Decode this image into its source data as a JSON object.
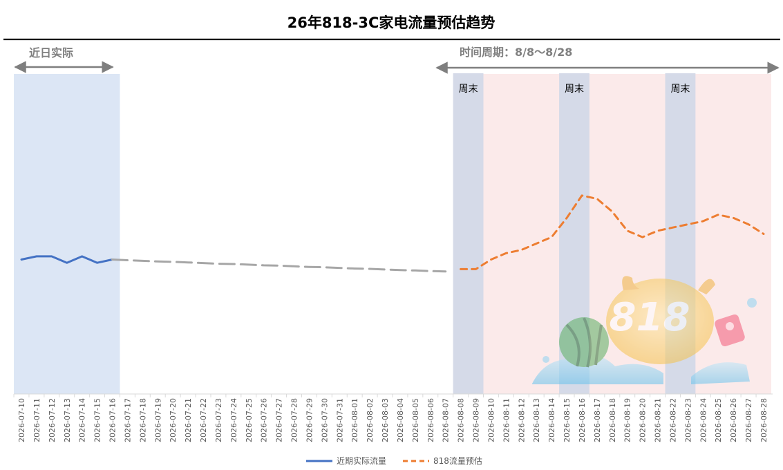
{
  "chart_data": {
    "type": "line",
    "title": "26年818-3C家电流量预估趋势",
    "categories": [
      "2026-07-10",
      "2026-07-11",
      "2026-07-12",
      "2026-07-13",
      "2026-07-14",
      "2026-07-15",
      "2026-07-16",
      "2026-07-17",
      "2026-07-18",
      "2026-07-19",
      "2026-07-20",
      "2026-07-21",
      "2026-07-22",
      "2026-07-23",
      "2026-07-24",
      "2026-07-25",
      "2026-07-26",
      "2026-07-27",
      "2026-07-28",
      "2026-07-29",
      "2026-07-30",
      "2026-07-31",
      "2026-08-01",
      "2026-08-02",
      "2026-08-03",
      "2026-08-04",
      "2026-08-05",
      "2026-08-06",
      "2026-08-07",
      "2026-08-08",
      "2026-08-09",
      "2026-08-10",
      "2026-08-11",
      "2026-08-12",
      "2026-08-13",
      "2026-08-14",
      "2026-08-15",
      "2026-08-16",
      "2026-08-17",
      "2026-08-18",
      "2026-08-19",
      "2026-08-20",
      "2026-08-21",
      "2026-08-22",
      "2026-08-23",
      "2026-08-24",
      "2026-08-25",
      "2026-08-26",
      "2026-08-27",
      "2026-08-28"
    ],
    "series": [
      {
        "name": "近期实际流量",
        "color": "#4472C4",
        "style": "solid",
        "values": [
          0.42,
          0.43,
          0.43,
          0.41,
          0.43,
          0.41,
          0.42,
          null,
          null,
          null,
          null,
          null,
          null,
          null,
          null,
          null,
          null,
          null,
          null,
          null,
          null,
          null,
          null,
          null,
          null,
          null,
          null,
          null,
          null,
          null,
          null,
          null,
          null,
          null,
          null,
          null,
          null,
          null,
          null,
          null,
          null,
          null,
          null,
          null,
          null,
          null,
          null,
          null,
          null,
          null
        ]
      },
      {
        "name": "818流量预估",
        "color": "#ED7D31",
        "style": "dashed",
        "values": [
          null,
          null,
          null,
          null,
          null,
          null,
          null,
          null,
          null,
          null,
          null,
          null,
          null,
          null,
          null,
          null,
          null,
          null,
          null,
          null,
          null,
          null,
          null,
          null,
          null,
          null,
          null,
          null,
          null,
          0.39,
          0.39,
          0.42,
          0.44,
          0.45,
          0.47,
          0.49,
          0.55,
          0.62,
          0.61,
          0.57,
          0.51,
          0.49,
          0.51,
          0.52,
          0.53,
          0.54,
          0.56,
          0.55,
          0.53,
          0.5
        ]
      },
      {
        "name": "",
        "color": "#A6A6A6",
        "style": "dashed",
        "values": [
          null,
          null,
          null,
          null,
          null,
          null,
          0.42,
          0.418,
          0.416,
          0.414,
          0.413,
          0.411,
          0.409,
          0.407,
          0.406,
          0.404,
          0.402,
          0.401,
          0.399,
          0.397,
          0.396,
          0.394,
          0.392,
          0.391,
          0.389,
          0.387,
          0.386,
          0.384,
          0.383,
          null,
          null,
          null,
          null,
          null,
          null,
          null,
          null,
          null,
          null,
          null,
          null,
          null,
          null,
          null,
          null,
          null,
          null,
          null,
          null,
          null
        ]
      }
    ],
    "ylim": [
      0,
      1
    ],
    "yaxis_visible": false,
    "grid": false,
    "legend": "bottom-center",
    "annotations": {
      "recent_label": "近日实际",
      "period_label": "时间周期：8/8～8/28",
      "weekend_label": "周末"
    },
    "regions": {
      "recent": {
        "from": "2026-07-10",
        "to": "2026-07-16",
        "color": "#DCE6F5"
      },
      "period": {
        "from": "2026-08-08",
        "to": "2026-08-28",
        "color": "#FBEAEA"
      },
      "weekends": [
        {
          "from": "2026-08-08",
          "to": "2026-08-09"
        },
        {
          "from": "2026-08-15",
          "to": "2026-08-16"
        },
        {
          "from": "2026-08-22",
          "to": "2026-08-23"
        }
      ],
      "weekend_color": "#D5DAE8"
    },
    "colors": {
      "title_rule": "#000000",
      "arrow": "#7F7F7F",
      "label_gray": "#7F7F7F"
    }
  },
  "legend": {
    "items": [
      {
        "label": "近期实际流量",
        "color": "#4472C4",
        "style": "solid"
      },
      {
        "label": "818流量预估",
        "color": "#ED7D31",
        "style": "dashed"
      }
    ]
  },
  "decoration": {
    "logo_text": "818",
    "icon": "818-festival-mascot-icon"
  }
}
